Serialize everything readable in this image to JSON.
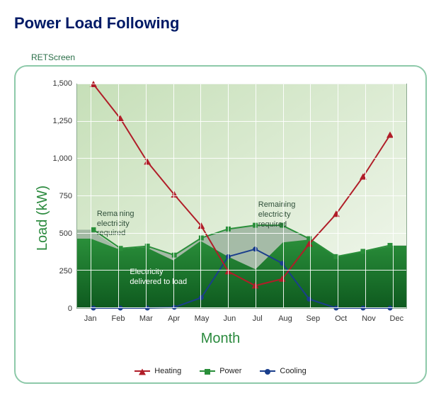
{
  "title": "Power Load Following",
  "brand": "RETScreen",
  "chart": {
    "type": "area+line",
    "xlabel": "Month",
    "ylabel": "Load (kW)",
    "categories": [
      "Jan",
      "Feb",
      "Mar",
      "Apr",
      "May",
      "Jun",
      "Jul",
      "Aug",
      "Sep",
      "Oct",
      "Nov",
      "Dec"
    ],
    "ylim": [
      0,
      1500
    ],
    "ytick_step": 250,
    "inner_bg_from": "#c6dfb8",
    "inner_bg_to": "#f3f8ef",
    "grid_color": "#ffffff",
    "border_color": "#8aa88f",
    "axis_label_color": "#2b8a3e",
    "area_power_total": {
      "values": [
        525,
        400,
        415,
        355,
        470,
        530,
        555,
        555,
        465,
        345,
        380,
        420
      ],
      "color": "#9ab29e",
      "opacity": 0.85
    },
    "area_delivered": {
      "values": [
        465,
        395,
        408,
        320,
        450,
        345,
        260,
        440,
        460,
        345,
        380,
        418
      ],
      "color_from": "#2a8f3a",
      "color_to": "#0e5a1f"
    },
    "series": {
      "power": {
        "label": "Power",
        "values": [
          525,
          400,
          415,
          355,
          470,
          530,
          555,
          555,
          465,
          345,
          380,
          420
        ],
        "color": "#2a8f3a",
        "marker": "square",
        "line_width": 2
      },
      "heating": {
        "label": "Heating",
        "values": [
          1500,
          1270,
          980,
          760,
          550,
          245,
          150,
          195,
          430,
          630,
          880,
          1160
        ],
        "color": "#b01d28",
        "marker": "triangle",
        "line_width": 2
      },
      "cooling": {
        "label": "Cooling",
        "values": [
          0,
          0,
          0,
          5,
          70,
          345,
          395,
          300,
          60,
          0,
          0,
          0
        ],
        "color": "#1a3e8c",
        "marker": "circle",
        "line_width": 2
      }
    },
    "annotations": {
      "remain_left": "Remaining\nelectricity\nrequired",
      "remain_right": "Remaining\nelectricity\nrequired",
      "delivered": "Electricity\ndelivered to load"
    }
  },
  "legend_order": [
    "heating",
    "power",
    "cooling"
  ]
}
